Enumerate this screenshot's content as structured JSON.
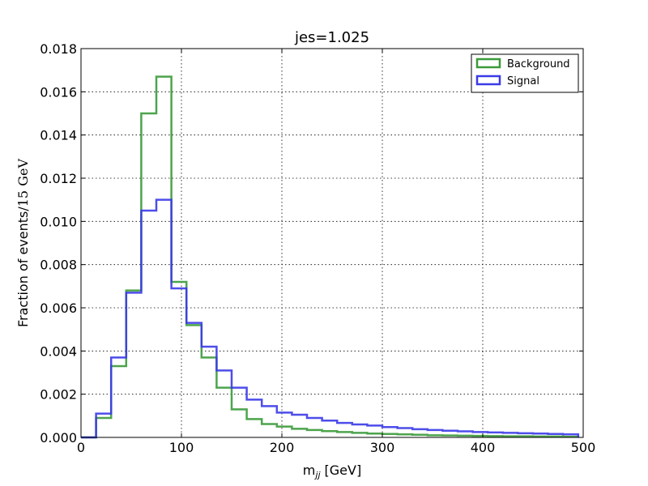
{
  "chart_data": {
    "type": "line",
    "title": "jes=1.025",
    "xlabel_main": "m",
    "xlabel_sub": "jj",
    "xlabel_unit": "[GeV]",
    "ylabel_main": "Fraction of events",
    "ylabel_unit": "/15 GeV",
    "xlim": [
      0,
      500
    ],
    "ylim": [
      0,
      0.018
    ],
    "x_ticks": [
      0,
      100,
      200,
      300,
      400,
      500
    ],
    "x_tick_labels": [
      "0",
      "100",
      "200",
      "300",
      "400",
      "500"
    ],
    "y_ticks": [
      0,
      0.002,
      0.004,
      0.006,
      0.008,
      0.01,
      0.012,
      0.014,
      0.016,
      0.018
    ],
    "y_tick_labels": [
      "0.000",
      "0.002",
      "0.004",
      "0.006",
      "0.008",
      "0.010",
      "0.012",
      "0.014",
      "0.016",
      "0.018"
    ],
    "grid": true,
    "legend_position": "top-right",
    "bin_edges": [
      0,
      15,
      30,
      45,
      60,
      75,
      90,
      105,
      120,
      135,
      150,
      165,
      180,
      195,
      210,
      225,
      240,
      255,
      270,
      285,
      300,
      315,
      330,
      345,
      360,
      375,
      390,
      405,
      420,
      435,
      450,
      465,
      480,
      495
    ],
    "series": [
      {
        "name": "Background",
        "color": "#3a9a3a",
        "values": [
          0,
          0.0009,
          0.0033,
          0.0068,
          0.015,
          0.0167,
          0.0072,
          0.0052,
          0.0037,
          0.0023,
          0.0013,
          0.00085,
          0.00062,
          0.0005,
          0.0004,
          0.00034,
          0.00029,
          0.00025,
          0.00021,
          0.00018,
          0.00016,
          0.00014,
          0.00012,
          0.0001,
          9e-05,
          8e-05,
          7e-05,
          6e-05,
          5e-05,
          5e-05,
          4e-05,
          4e-05,
          3e-05
        ]
      },
      {
        "name": "Signal",
        "color": "#3a3ae8",
        "values": [
          0,
          0.0011,
          0.0037,
          0.0067,
          0.0105,
          0.011,
          0.0069,
          0.0053,
          0.0042,
          0.0031,
          0.0023,
          0.00175,
          0.00145,
          0.00115,
          0.00105,
          0.0009,
          0.00078,
          0.00067,
          0.0006,
          0.00055,
          0.00048,
          0.00043,
          0.00038,
          0.00034,
          0.00031,
          0.00028,
          0.00025,
          0.00023,
          0.00021,
          0.00019,
          0.00018,
          0.00016,
          0.00014
        ]
      }
    ]
  }
}
